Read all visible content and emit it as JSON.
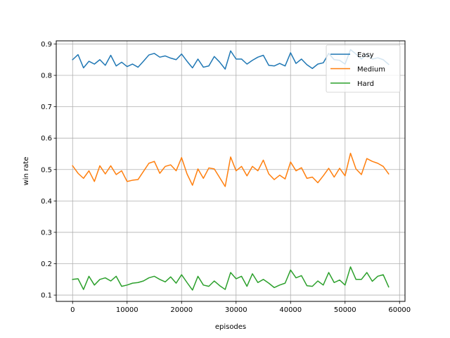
{
  "chart_data": {
    "type": "line",
    "xlabel": "episodes",
    "ylabel": "win rate",
    "xlim": [
      -3000,
      61000
    ],
    "ylim": [
      0.08,
      0.91
    ],
    "xticks": [
      0,
      10000,
      20000,
      30000,
      40000,
      50000,
      60000
    ],
    "xtick_labels": [
      "0",
      "10000",
      "20000",
      "30000",
      "40000",
      "50000",
      "60000"
    ],
    "yticks": [
      0.1,
      0.2,
      0.3,
      0.4,
      0.5,
      0.6,
      0.7,
      0.8,
      0.9
    ],
    "ytick_labels": [
      "0.1",
      "0.2",
      "0.3",
      "0.4",
      "0.5",
      "0.6",
      "0.7",
      "0.8",
      "0.9"
    ],
    "grid": true,
    "legend_position": "top-right",
    "x": [
      0,
      1000,
      2000,
      3000,
      4000,
      5000,
      6000,
      7000,
      8000,
      9000,
      10000,
      11000,
      12000,
      13000,
      14000,
      15000,
      16000,
      17000,
      18000,
      19000,
      20000,
      21000,
      22000,
      23000,
      24000,
      25000,
      26000,
      27000,
      28000,
      29000,
      30000,
      31000,
      32000,
      33000,
      34000,
      35000,
      36000,
      37000,
      38000,
      39000,
      40000,
      41000,
      42000,
      43000,
      44000,
      45000,
      46000,
      47000,
      48000,
      49000,
      50000,
      51000,
      52000,
      53000,
      54000,
      55000,
      56000,
      57000,
      58000
    ],
    "series": [
      {
        "name": "Easy",
        "color": "#1f77b4",
        "values": [
          0.85,
          0.866,
          0.824,
          0.845,
          0.836,
          0.85,
          0.832,
          0.864,
          0.83,
          0.842,
          0.828,
          0.836,
          0.826,
          0.845,
          0.865,
          0.87,
          0.858,
          0.862,
          0.855,
          0.85,
          0.868,
          0.845,
          0.824,
          0.852,
          0.826,
          0.83,
          0.86,
          0.842,
          0.82,
          0.878,
          0.852,
          0.852,
          0.836,
          0.848,
          0.858,
          0.864,
          0.832,
          0.83,
          0.838,
          0.83,
          0.872,
          0.838,
          0.852,
          0.834,
          0.822,
          0.836,
          0.84,
          0.87,
          0.85,
          0.848,
          0.836,
          0.882,
          0.868,
          0.852,
          0.868,
          0.852,
          0.856,
          0.85,
          0.835
        ]
      },
      {
        "name": "Medium",
        "color": "#ff7f0e",
        "values": [
          0.512,
          0.488,
          0.472,
          0.496,
          0.462,
          0.512,
          0.486,
          0.512,
          0.484,
          0.496,
          0.462,
          0.466,
          0.468,
          0.494,
          0.52,
          0.526,
          0.488,
          0.51,
          0.515,
          0.496,
          0.538,
          0.486,
          0.45,
          0.502,
          0.472,
          0.505,
          0.502,
          0.474,
          0.446,
          0.54,
          0.496,
          0.51,
          0.48,
          0.51,
          0.496,
          0.53,
          0.486,
          0.468,
          0.482,
          0.47,
          0.524,
          0.496,
          0.506,
          0.472,
          0.476,
          0.458,
          0.48,
          0.504,
          0.476,
          0.504,
          0.48,
          0.552,
          0.502,
          0.484,
          0.535,
          0.526,
          0.52,
          0.51,
          0.486
        ]
      },
      {
        "name": "Hard",
        "color": "#2ca02c",
        "values": [
          0.15,
          0.152,
          0.118,
          0.16,
          0.132,
          0.15,
          0.155,
          0.145,
          0.16,
          0.128,
          0.132,
          0.138,
          0.14,
          0.145,
          0.155,
          0.16,
          0.15,
          0.142,
          0.158,
          0.138,
          0.165,
          0.14,
          0.116,
          0.16,
          0.132,
          0.128,
          0.145,
          0.13,
          0.118,
          0.172,
          0.152,
          0.16,
          0.128,
          0.168,
          0.14,
          0.15,
          0.138,
          0.124,
          0.132,
          0.138,
          0.18,
          0.155,
          0.162,
          0.13,
          0.128,
          0.145,
          0.132,
          0.172,
          0.14,
          0.148,
          0.132,
          0.19,
          0.15,
          0.15,
          0.172,
          0.144,
          0.16,
          0.165,
          0.126
        ]
      }
    ]
  }
}
